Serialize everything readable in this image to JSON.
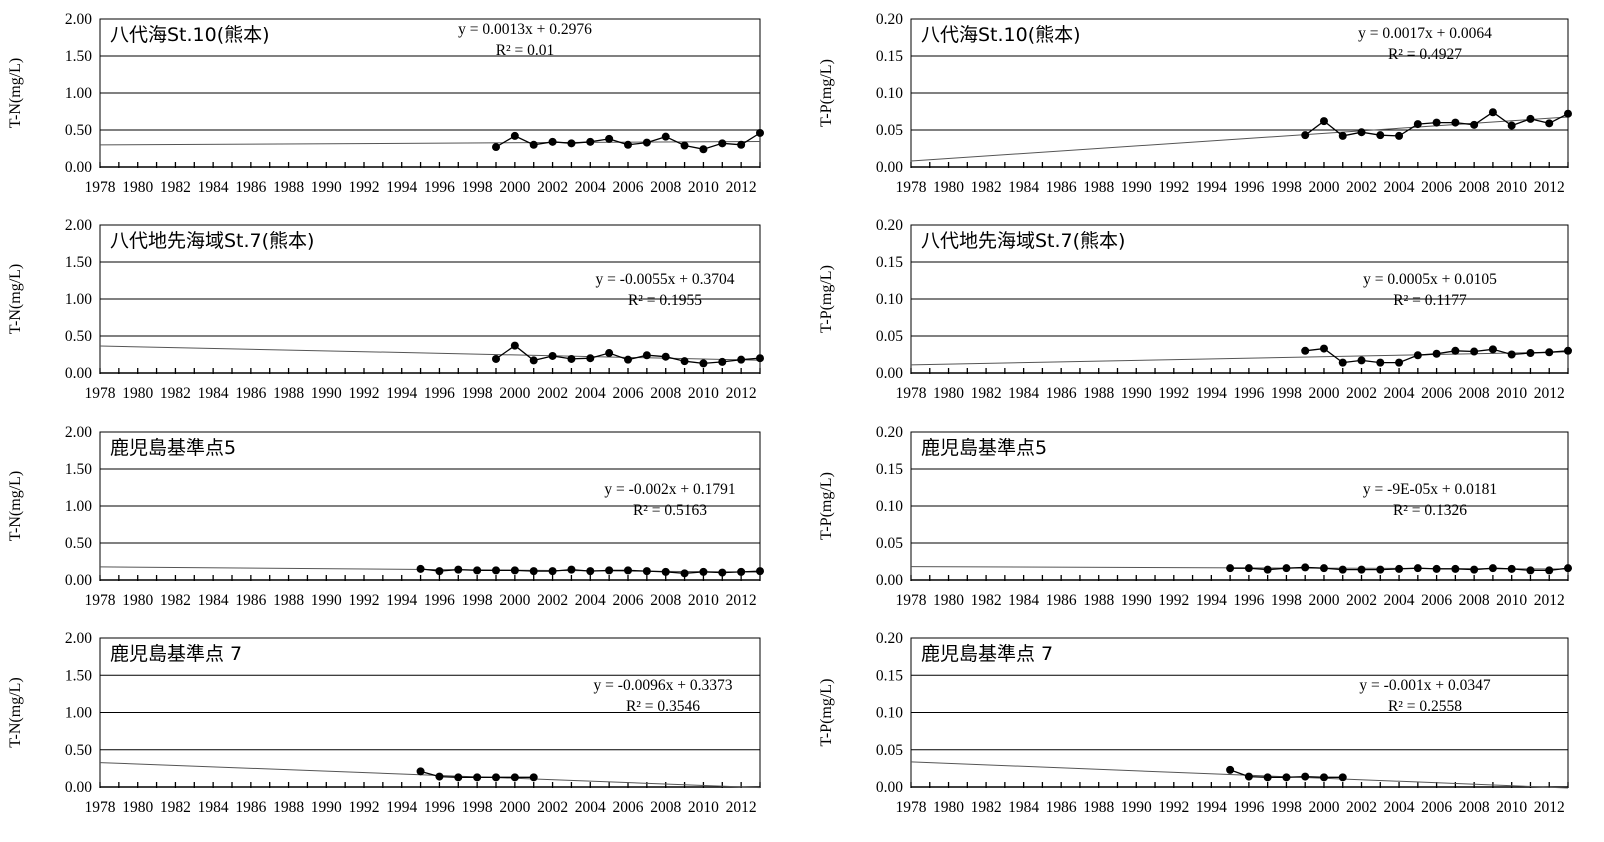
{
  "colors": {
    "line": "#000000",
    "grid": "#000000",
    "trend": "#555555",
    "background": "#ffffff"
  },
  "x_tick_labels": [
    "1978",
    "1980",
    "1982",
    "1984",
    "1986",
    "1988",
    "1990",
    "1992",
    "1994",
    "1996",
    "1998",
    "2000",
    "2002",
    "2004",
    "2006",
    "2008",
    "2010",
    "2012"
  ],
  "chart_data": [
    {
      "type": "line",
      "title": "八代海St.10(熊本)",
      "ylabel": "T-N(mg/L)",
      "xlim": [
        1978,
        2013
      ],
      "ylim": [
        0,
        2
      ],
      "y_ticks": [
        "0.00",
        "0.50",
        "1.00",
        "1.50",
        "2.00"
      ],
      "equation": "y = 0.0013x + 0.2976",
      "r2": "R² = 0.01",
      "trend": {
        "slope": 0.0013,
        "intercept": 0.2976
      },
      "x": [
        1999,
        2000,
        2001,
        2002,
        2003,
        2004,
        2005,
        2006,
        2007,
        2008,
        2009,
        2010,
        2011,
        2012,
        2013
      ],
      "y": [
        0.27,
        0.42,
        0.3,
        0.34,
        0.32,
        0.34,
        0.38,
        0.3,
        0.33,
        0.41,
        0.29,
        0.24,
        0.32,
        0.3,
        0.46
      ]
    },
    {
      "type": "line",
      "title": "八代海St.10(熊本)",
      "ylabel": "T-P(mg/L)",
      "xlim": [
        1978,
        2013
      ],
      "ylim": [
        0,
        0.2
      ],
      "y_ticks": [
        "0.00",
        "0.05",
        "0.10",
        "0.15",
        "0.20"
      ],
      "equation": "y = 0.0017x + 0.0064",
      "r2": "R² = 0.4927",
      "trend": {
        "slope": 0.0017,
        "intercept": 0.0064
      },
      "x": [
        1999,
        2000,
        2001,
        2002,
        2003,
        2004,
        2005,
        2006,
        2007,
        2008,
        2009,
        2010,
        2011,
        2012,
        2013
      ],
      "y": [
        0.043,
        0.062,
        0.042,
        0.047,
        0.043,
        0.042,
        0.058,
        0.06,
        0.06,
        0.057,
        0.074,
        0.056,
        0.065,
        0.059,
        0.072
      ]
    },
    {
      "type": "line",
      "title": "八代地先海域St.7(熊本)",
      "ylabel": "T-N(mg/L)",
      "xlim": [
        1978,
        2013
      ],
      "ylim": [
        0,
        2
      ],
      "y_ticks": [
        "0.00",
        "0.50",
        "1.00",
        "1.50",
        "2.00"
      ],
      "equation": "y = -0.0055x + 0.3704",
      "r2": "R² = 0.1955",
      "trend": {
        "slope": -0.0055,
        "intercept": 0.3704
      },
      "x": [
        1999,
        2000,
        2001,
        2002,
        2003,
        2004,
        2005,
        2006,
        2007,
        2008,
        2009,
        2010,
        2011,
        2012,
        2013
      ],
      "y": [
        0.19,
        0.37,
        0.17,
        0.23,
        0.19,
        0.2,
        0.27,
        0.18,
        0.24,
        0.22,
        0.16,
        0.13,
        0.15,
        0.18,
        0.2
      ]
    },
    {
      "type": "line",
      "title": "八代地先海域St.7(熊本)",
      "ylabel": "T-P(mg/L)",
      "xlim": [
        1978,
        2013
      ],
      "ylim": [
        0,
        0.2
      ],
      "y_ticks": [
        "0.00",
        "0.05",
        "0.10",
        "0.15",
        "0.20"
      ],
      "equation": "y = 0.0005x + 0.0105",
      "r2": "R² = 0.1177",
      "trend": {
        "slope": 0.0005,
        "intercept": 0.0105
      },
      "x": [
        1999,
        2000,
        2001,
        2002,
        2003,
        2004,
        2005,
        2006,
        2007,
        2008,
        2009,
        2010,
        2011,
        2012,
        2013
      ],
      "y": [
        0.03,
        0.033,
        0.014,
        0.017,
        0.014,
        0.014,
        0.024,
        0.026,
        0.03,
        0.029,
        0.032,
        0.025,
        0.027,
        0.028,
        0.03
      ]
    },
    {
      "type": "line",
      "title": "鹿児島基準点5",
      "ylabel": "T-N(mg/L)",
      "xlim": [
        1978,
        2013
      ],
      "ylim": [
        0,
        2
      ],
      "y_ticks": [
        "0.00",
        "0.50",
        "1.00",
        "1.50",
        "2.00"
      ],
      "equation": "y = -0.002x + 0.1791",
      "r2": "R² = 0.5163",
      "trend": {
        "slope": -0.002,
        "intercept": 0.1791
      },
      "x": [
        1995,
        1996,
        1997,
        1998,
        1999,
        2000,
        2001,
        2002,
        2003,
        2004,
        2005,
        2006,
        2007,
        2008,
        2009,
        2010,
        2011,
        2012,
        2013
      ],
      "y": [
        0.15,
        0.12,
        0.14,
        0.13,
        0.13,
        0.13,
        0.12,
        0.12,
        0.14,
        0.12,
        0.13,
        0.13,
        0.12,
        0.11,
        0.09,
        0.11,
        0.1,
        0.11,
        0.12
      ]
    },
    {
      "type": "line",
      "title": "鹿児島基準点5",
      "ylabel": "T-P(mg/L)",
      "xlim": [
        1978,
        2013
      ],
      "ylim": [
        0,
        0.2
      ],
      "y_ticks": [
        "0.00",
        "0.05",
        "0.10",
        "0.15",
        "0.20"
      ],
      "equation": "y = -9E-05x + 0.0181",
      "r2": "R² = 0.1326",
      "trend": {
        "slope": -9e-05,
        "intercept": 0.0181
      },
      "x": [
        1995,
        1996,
        1997,
        1998,
        1999,
        2000,
        2001,
        2002,
        2003,
        2004,
        2005,
        2006,
        2007,
        2008,
        2009,
        2010,
        2011,
        2012,
        2013
      ],
      "y": [
        0.016,
        0.016,
        0.014,
        0.016,
        0.017,
        0.016,
        0.014,
        0.014,
        0.014,
        0.015,
        0.016,
        0.015,
        0.015,
        0.014,
        0.016,
        0.015,
        0.013,
        0.013,
        0.016
      ]
    },
    {
      "type": "line",
      "title": "鹿児島基準点 7",
      "ylabel": "T-N(mg/L)",
      "xlim": [
        1978,
        2013
      ],
      "ylim": [
        0,
        2
      ],
      "y_ticks": [
        "0.00",
        "0.50",
        "1.00",
        "1.50",
        "2.00"
      ],
      "equation": "y = -0.0096x + 0.3373",
      "r2": "R² = 0.3546",
      "trend": {
        "slope": -0.0096,
        "intercept": 0.3373
      },
      "x": [
        1995,
        1996,
        1997,
        1998,
        1999,
        2000,
        2001
      ],
      "y": [
        0.21,
        0.14,
        0.13,
        0.13,
        0.13,
        0.13,
        0.13
      ]
    },
    {
      "type": "line",
      "title": "鹿児島基準点 7",
      "ylabel": "T-P(mg/L)",
      "xlim": [
        1978,
        2013
      ],
      "ylim": [
        0,
        0.2
      ],
      "y_ticks": [
        "0.00",
        "0.05",
        "0.10",
        "0.15",
        "0.20"
      ],
      "equation": "y = -0.001x + 0.0347",
      "r2": "R² = 0.2558",
      "trend": {
        "slope": -0.001,
        "intercept": 0.0347
      },
      "x": [
        1995,
        1996,
        1997,
        1998,
        1999,
        2000,
        2001
      ],
      "y": [
        0.023,
        0.014,
        0.013,
        0.013,
        0.014,
        0.013,
        0.013
      ]
    }
  ]
}
